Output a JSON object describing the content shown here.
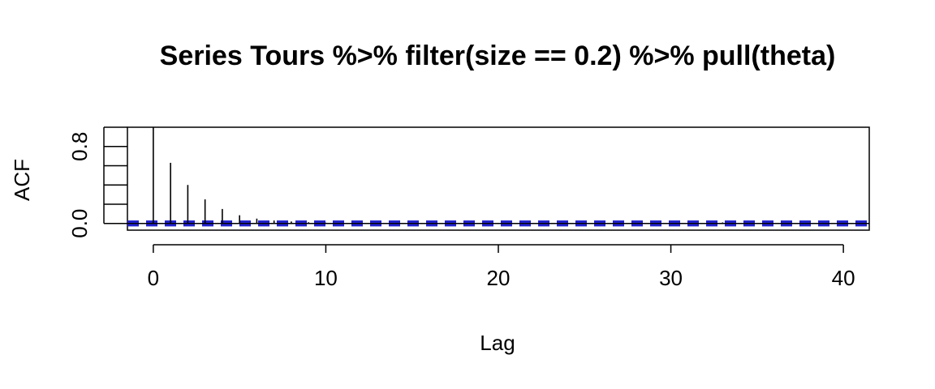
{
  "chart_data": {
    "type": "bar",
    "title": "Series  Tours %>% filter(size == 0.2) %>% pull(theta)",
    "xlabel": "Lag",
    "ylabel": "ACF",
    "xlim": [
      -1.5,
      41.5
    ],
    "ylim": [
      -0.07,
      1.0
    ],
    "x_ticks": [
      0,
      10,
      20,
      30,
      40
    ],
    "x_tick_labels": [
      "0",
      "10",
      "20",
      "30",
      "40"
    ],
    "y_ticks": [
      0.0,
      0.2,
      0.4,
      0.6,
      0.8,
      1.0
    ],
    "y_tick_labels": [
      "0.0",
      "",
      "",
      "",
      "0.8",
      ""
    ],
    "lags": [
      0,
      1,
      2,
      3,
      4,
      5,
      6,
      7,
      8,
      9,
      10,
      11,
      12,
      13,
      14,
      15,
      16,
      17,
      18,
      19,
      20,
      21,
      22,
      23,
      24,
      25,
      26,
      27,
      28,
      29,
      30,
      31,
      32,
      33,
      34,
      35,
      36,
      37,
      38,
      39,
      40
    ],
    "acf": [
      1.0,
      0.63,
      0.4,
      0.25,
      0.15,
      0.085,
      0.05,
      0.03,
      0.02,
      0.012,
      0.008,
      0.006,
      0.005,
      0.004,
      0.003,
      0.003,
      0.002,
      0.002,
      0.002,
      0.002,
      0.001,
      0.001,
      0.001,
      0.001,
      0.001,
      0.001,
      0.001,
      0.001,
      0.001,
      0.001,
      0.001,
      0.001,
      0.001,
      0.01,
      0.002,
      0.001,
      0.001,
      0.001,
      0.001,
      0.001,
      0.001
    ],
    "confidence_bound": 0.018,
    "confidence_color": "#2222cc",
    "spike_color": "#000000",
    "grid": false
  }
}
